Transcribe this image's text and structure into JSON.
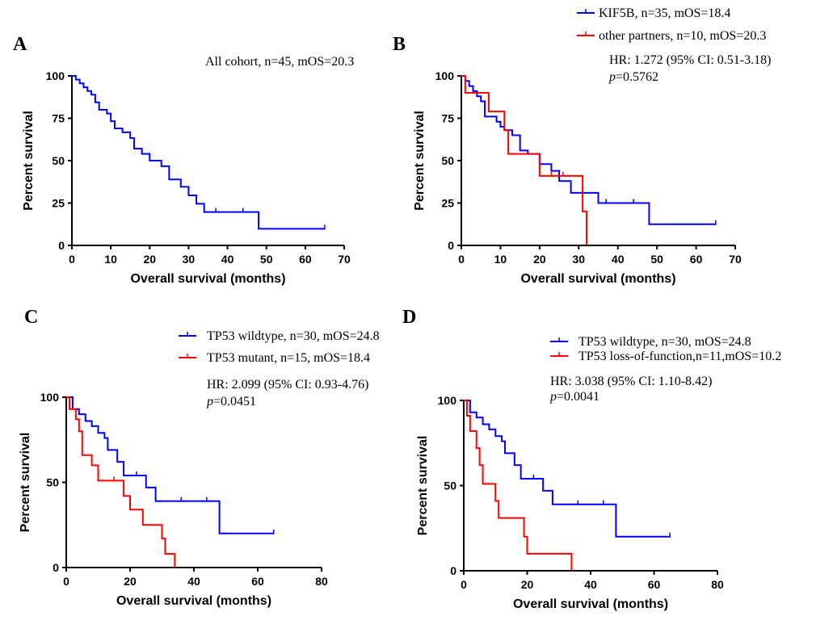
{
  "chart_data": [
    {
      "panel": "A",
      "type": "line",
      "xlabel": "Overall survival (months)",
      "ylabel": "Percent survival",
      "xlim": [
        0,
        70
      ],
      "ylim": [
        0,
        100
      ],
      "xticks": [
        "0",
        "10",
        "20",
        "30",
        "40",
        "50",
        "60",
        "70"
      ],
      "yticks": [
        "0",
        "25",
        "50",
        "75",
        "100"
      ],
      "annotations": [
        "All cohort, n=45, mOS=20.3"
      ],
      "series": [
        {
          "color": "#0000ff",
          "x": [
            0,
            1,
            2,
            3,
            4,
            5,
            6,
            7,
            9,
            10,
            11,
            13,
            15,
            16,
            18,
            20,
            23,
            25,
            28,
            30,
            32,
            33,
            34,
            48,
            65
          ],
          "y": [
            100,
            97.8,
            95.6,
            93.3,
            91.1,
            88.9,
            84.4,
            80,
            77.8,
            73.3,
            69,
            66.7,
            63.3,
            57.1,
            54,
            50,
            46.7,
            38.9,
            34.6,
            29.5,
            24.6,
            24.6,
            19.7,
            9.8,
            9.8
          ],
          "censors": [
            [
              37,
              19.7
            ],
            [
              44,
              19.7
            ],
            [
              65,
              9.8
            ]
          ]
        }
      ]
    },
    {
      "panel": "B",
      "type": "line",
      "xlabel": "Overall survival (months)",
      "ylabel": "Percent survival",
      "xlim": [
        0,
        70
      ],
      "ylim": [
        0,
        100
      ],
      "xticks": [
        "0",
        "10",
        "20",
        "30",
        "40",
        "50",
        "60",
        "70"
      ],
      "yticks": [
        "0",
        "25",
        "50",
        "75",
        "100"
      ],
      "legend_position": "top-right",
      "annotations": [
        "HR: 1.272  (95% CI: 0.51-3.18)"
      ],
      "p_prefix": "p",
      "p_value": "=0.5762",
      "series": [
        {
          "name": "KIF5B, n=35, mOS=18.4",
          "color": "#0000ff",
          "x": [
            0,
            1,
            2,
            3,
            4,
            5,
            6,
            9,
            10,
            11,
            13,
            15,
            17,
            20,
            23,
            25,
            28,
            30,
            35,
            48,
            65
          ],
          "y": [
            100,
            97,
            94,
            91,
            88,
            85,
            76,
            73,
            70,
            68,
            65,
            56,
            54,
            48,
            44,
            38,
            31,
            31,
            25,
            12.5,
            12.5
          ],
          "censors": [
            [
              37,
              25
            ],
            [
              44,
              25
            ],
            [
              65,
              12.5
            ]
          ]
        },
        {
          "name": "other partners, n=10, mOS=20.3",
          "color": "#ff0000",
          "x": [
            0,
            1,
            6,
            7,
            10,
            11,
            12,
            19,
            20,
            31,
            32
          ],
          "y": [
            100,
            90,
            90,
            79,
            79,
            68,
            54,
            54,
            41,
            20,
            0
          ],
          "censors": [
            [
              23,
              41
            ],
            [
              26,
              41
            ]
          ]
        }
      ]
    },
    {
      "panel": "C",
      "type": "line",
      "xlabel": "Overall survival (months)",
      "ylabel": "Percent survival",
      "xlim": [
        0,
        80
      ],
      "ylim": [
        0,
        100
      ],
      "xticks": [
        "0",
        "20",
        "40",
        "60",
        "80"
      ],
      "yticks": [
        "0",
        "50",
        "100"
      ],
      "legend_position": "top-right",
      "annotations": [
        "HR: 2.099  (95% CI: 0.93-4.76)"
      ],
      "p_prefix": "p",
      "p_value": "=0.0451",
      "series": [
        {
          "name": "TP53 wildtype, n=30, mOS=24.8",
          "color": "#0000ff",
          "x": [
            0,
            2,
            4,
            6,
            8,
            10,
            12,
            13,
            16,
            18,
            21,
            25,
            28,
            48,
            65
          ],
          "y": [
            100,
            93,
            90,
            86,
            83,
            79,
            76,
            69,
            62,
            54,
            54,
            47,
            39,
            20,
            20
          ],
          "censors": [
            [
              22,
              54
            ],
            [
              36,
              39
            ],
            [
              44,
              39
            ],
            [
              65,
              20
            ]
          ]
        },
        {
          "name": "TP53 mutant, n=15, mOS=18.4",
          "color": "#ff0000",
          "x": [
            0,
            1,
            3,
            4,
            5,
            8,
            10,
            17,
            18,
            20,
            24,
            30,
            31,
            32,
            34
          ],
          "y": [
            100,
            93,
            87,
            80,
            66,
            60,
            51,
            51,
            42,
            34,
            25,
            17,
            8,
            8,
            0
          ],
          "censors": [
            [
              15,
              51
            ]
          ]
        }
      ]
    },
    {
      "panel": "D",
      "type": "line",
      "xlabel": "Overall survival (months)",
      "ylabel": "Percent survival",
      "xlim": [
        0,
        80
      ],
      "ylim": [
        0,
        100
      ],
      "xticks": [
        "0",
        "20",
        "40",
        "60",
        "80"
      ],
      "yticks": [
        "0",
        "50",
        "100"
      ],
      "legend_position": "top-right",
      "annotations": [
        "HR: 3.038  (95% CI: 1.10-8.42)"
      ],
      "p_prefix": "p",
      "p_value": "=0.0041",
      "series": [
        {
          "name": "TP53 wildtype, n=30, mOS=24.8",
          "color": "#0000ff",
          "x": [
            0,
            2,
            4,
            6,
            8,
            10,
            12,
            13,
            16,
            18,
            21,
            25,
            28,
            48,
            65
          ],
          "y": [
            100,
            93,
            90,
            86,
            83,
            79,
            76,
            69,
            62,
            54,
            54,
            47,
            39,
            20,
            20
          ],
          "censors": [
            [
              22,
              54
            ],
            [
              36,
              39
            ],
            [
              44,
              39
            ],
            [
              65,
              20
            ]
          ]
        },
        {
          "name": "TP53 loss-of-function,n=11,mOS=10.2",
          "color": "#ff0000",
          "x": [
            0,
            1,
            2,
            4,
            5,
            6,
            10,
            11,
            17,
            19,
            20,
            34
          ],
          "y": [
            100,
            91,
            82,
            72,
            62,
            51,
            41,
            31,
            31,
            20,
            10,
            0
          ],
          "censors": []
        }
      ]
    }
  ]
}
